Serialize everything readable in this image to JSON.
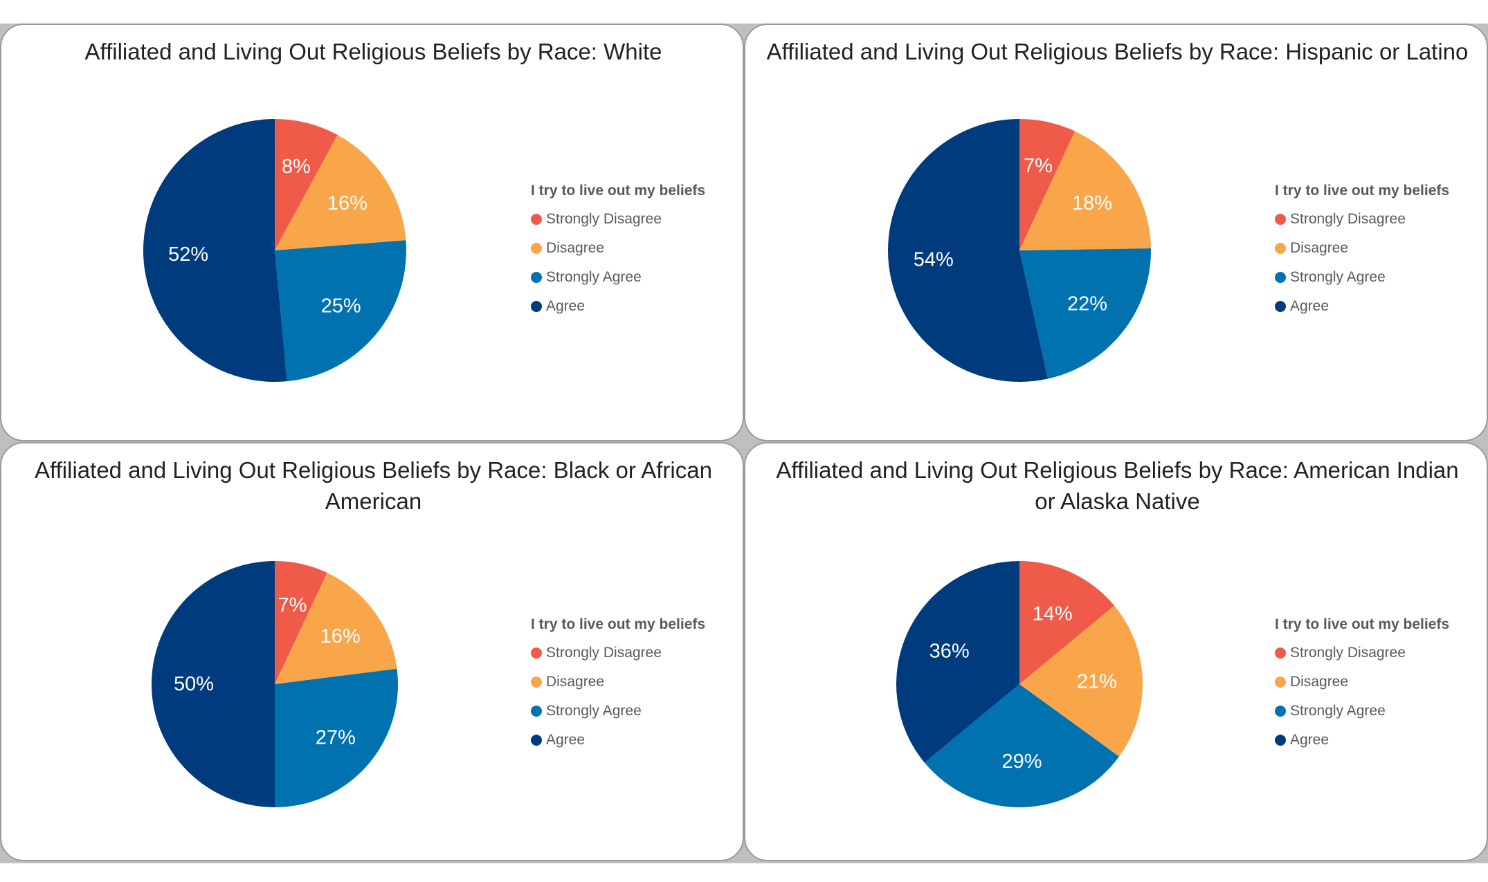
{
  "colors": {
    "Strongly Disagree": "#f05a48",
    "Disagree": "#f9a64b",
    "Strongly Agree": "#0072b0",
    "Agree": "#003b7d"
  },
  "legend": {
    "title": "I try to live out my beliefs",
    "entries": [
      "Strongly Disagree",
      "Disagree",
      "Strongly Agree",
      "Agree"
    ]
  },
  "chart_data": [
    {
      "type": "pie",
      "title": "Affiliated and Living Out Religious Beliefs by Race: White",
      "categories": [
        "Strongly Disagree",
        "Disagree",
        "Strongly Agree",
        "Agree"
      ],
      "values": [
        8,
        16,
        25,
        52
      ],
      "labels": [
        "8%",
        "16%",
        "25%",
        "52%"
      ],
      "legend_title": "I try to live out my beliefs"
    },
    {
      "type": "pie",
      "title": "Affiliated and Living Out Religious Beliefs by Race: Hispanic or Latino",
      "categories": [
        "Strongly Disagree",
        "Disagree",
        "Strongly Agree",
        "Agree"
      ],
      "values": [
        7,
        18,
        22,
        54
      ],
      "labels": [
        "7%",
        "18%",
        "22%",
        "54%"
      ],
      "legend_title": "I try to live out my beliefs"
    },
    {
      "type": "pie",
      "title": "Affiliated and Living Out Religious Beliefs by Race: Black or African American",
      "categories": [
        "Strongly Disagree",
        "Disagree",
        "Strongly Agree",
        "Agree"
      ],
      "values": [
        7,
        16,
        27,
        50
      ],
      "labels": [
        "7%",
        "16%",
        "27%",
        "50%"
      ],
      "legend_title": "I try to live out my beliefs"
    },
    {
      "type": "pie",
      "title": "Affiliated and Living Out Religious Beliefs by Race: American Indian or Alaska Native",
      "categories": [
        "Strongly Disagree",
        "Disagree",
        "Strongly Agree",
        "Agree"
      ],
      "values": [
        14,
        21,
        29,
        36
      ],
      "labels": [
        "14%",
        "21%",
        "29%",
        "36%"
      ],
      "legend_title": "I try to live out my beliefs"
    }
  ]
}
